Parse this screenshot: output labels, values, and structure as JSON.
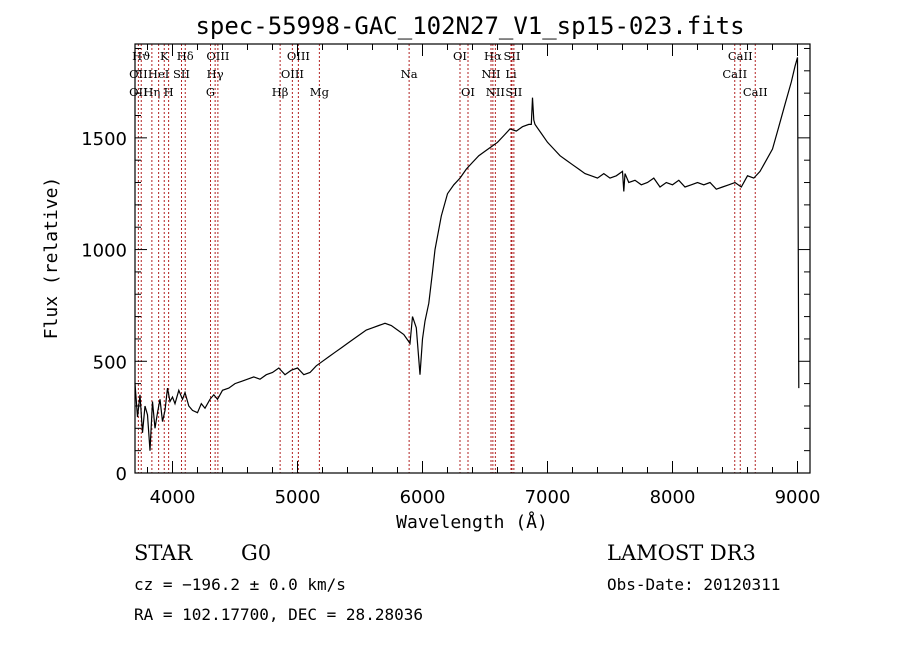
{
  "chart_data": {
    "type": "line",
    "title": "spec-55998-GAC_102N27_V1_sp15-023.fits",
    "xlabel": "Wavelength (Å)",
    "ylabel": "Flux (relative)",
    "xlim": [
      3700,
      9100
    ],
    "ylim": [
      0,
      1920
    ],
    "xticks": [
      4000,
      5000,
      6000,
      7000,
      8000,
      9000
    ],
    "xtick_labels": [
      "4000",
      "5000",
      "6000",
      "7000",
      "8000",
      "9000"
    ],
    "yticks": [
      0,
      500,
      1000,
      1500
    ],
    "ytick_labels": [
      "0",
      "500",
      "1000",
      "1500"
    ],
    "series": [
      {
        "name": "spectrum",
        "x": [
          3700,
          3720,
          3740,
          3760,
          3780,
          3800,
          3820,
          3840,
          3860,
          3880,
          3900,
          3920,
          3940,
          3960,
          3980,
          4000,
          4020,
          4050,
          4080,
          4100,
          4130,
          4160,
          4200,
          4230,
          4260,
          4300,
          4330,
          4360,
          4400,
          4450,
          4500,
          4550,
          4600,
          4650,
          4700,
          4750,
          4800,
          4850,
          4900,
          4950,
          5000,
          5050,
          5100,
          5150,
          5200,
          5250,
          5300,
          5350,
          5400,
          5450,
          5500,
          5550,
          5600,
          5650,
          5700,
          5750,
          5800,
          5850,
          5900,
          5920,
          5950,
          5980,
          6000,
          6020,
          6050,
          6080,
          6100,
          6150,
          6200,
          6250,
          6300,
          6350,
          6400,
          6450,
          6500,
          6550,
          6600,
          6650,
          6700,
          6750,
          6800,
          6850,
          6870,
          6880,
          6890,
          6900,
          6950,
          7000,
          7050,
          7100,
          7150,
          7200,
          7250,
          7300,
          7350,
          7400,
          7450,
          7500,
          7550,
          7600,
          7610,
          7620,
          7650,
          7700,
          7750,
          7800,
          7850,
          7900,
          7950,
          8000,
          8050,
          8100,
          8150,
          8200,
          8250,
          8300,
          8350,
          8400,
          8450,
          8500,
          8550,
          8600,
          8650,
          8700,
          8750,
          8800,
          8850,
          8900,
          8950,
          8980,
          9000,
          9010
        ],
        "y": [
          400,
          250,
          350,
          180,
          300,
          260,
          100,
          320,
          200,
          270,
          330,
          230,
          280,
          380,
          320,
          340,
          310,
          370,
          330,
          360,
          300,
          280,
          270,
          310,
          290,
          330,
          350,
          330,
          370,
          380,
          400,
          410,
          420,
          430,
          420,
          440,
          450,
          470,
          440,
          460,
          470,
          440,
          450,
          480,
          500,
          520,
          540,
          560,
          580,
          600,
          620,
          640,
          650,
          660,
          670,
          660,
          640,
          620,
          580,
          700,
          650,
          440,
          600,
          680,
          760,
          900,
          1000,
          1150,
          1250,
          1290,
          1320,
          1360,
          1390,
          1420,
          1440,
          1460,
          1480,
          1510,
          1540,
          1530,
          1550,
          1560,
          1560,
          1680,
          1580,
          1560,
          1520,
          1480,
          1450,
          1420,
          1400,
          1380,
          1360,
          1340,
          1330,
          1320,
          1340,
          1320,
          1330,
          1350,
          1260,
          1340,
          1300,
          1310,
          1290,
          1300,
          1320,
          1280,
          1300,
          1290,
          1310,
          1280,
          1290,
          1300,
          1290,
          1300,
          1270,
          1280,
          1290,
          1300,
          1280,
          1330,
          1320,
          1350,
          1400,
          1450,
          1550,
          1650,
          1750,
          1820,
          1860,
          380
        ]
      }
    ],
    "line_markers": [
      {
        "label": "Hϑ",
        "x": 3750,
        "row": 0
      },
      {
        "label": "OII",
        "x": 3727,
        "row": 1
      },
      {
        "label": "OII",
        "x": 3727,
        "row": 2
      },
      {
        "label": "Hη",
        "x": 3835,
        "row": 2
      },
      {
        "label": "K",
        "x": 3934,
        "row": 0
      },
      {
        "label": "HeI",
        "x": 3889,
        "row": 1
      },
      {
        "label": "H",
        "x": 3969,
        "row": 2
      },
      {
        "label": "Hδ",
        "x": 4102,
        "row": 0
      },
      {
        "label": "SII",
        "x": 4072,
        "row": 1
      },
      {
        "label": "OIII",
        "x": 4363,
        "row": 0
      },
      {
        "label": "Hγ",
        "x": 4341,
        "row": 1
      },
      {
        "label": "G",
        "x": 4304,
        "row": 2
      },
      {
        "label": "Hβ",
        "x": 4861,
        "row": 2
      },
      {
        "label": "OIII",
        "x": 5007,
        "row": 0
      },
      {
        "label": "OIII",
        "x": 4959,
        "row": 1
      },
      {
        "label": "Mg",
        "x": 5175,
        "row": 2
      },
      {
        "label": "Na",
        "x": 5893,
        "row": 1
      },
      {
        "label": "OI",
        "x": 6300,
        "row": 0
      },
      {
        "label": "OI",
        "x": 6364,
        "row": 2
      },
      {
        "label": "Hα",
        "x": 6563,
        "row": 0
      },
      {
        "label": "SII",
        "x": 6716,
        "row": 0
      },
      {
        "label": "NII",
        "x": 6548,
        "row": 1
      },
      {
        "label": "Li",
        "x": 6708,
        "row": 1
      },
      {
        "label": "NII",
        "x": 6583,
        "row": 2
      },
      {
        "label": "SII",
        "x": 6731,
        "row": 2
      },
      {
        "label": "CaII",
        "x": 8542,
        "row": 0
      },
      {
        "label": "CaII",
        "x": 8498,
        "row": 1
      },
      {
        "label": "CaII",
        "x": 8662,
        "row": 2
      }
    ]
  },
  "footer": {
    "class_label": "STAR",
    "subclass": "G0",
    "survey": "LAMOST DR3",
    "cz": "cz = −196.2 ± 0.0 km/s",
    "obs_date": "Obs-Date: 20120311",
    "coords": "RA = 102.17700, DEC =  28.28036"
  },
  "colors": {
    "line_marker": "#b22222",
    "spectrum": "#000000"
  }
}
